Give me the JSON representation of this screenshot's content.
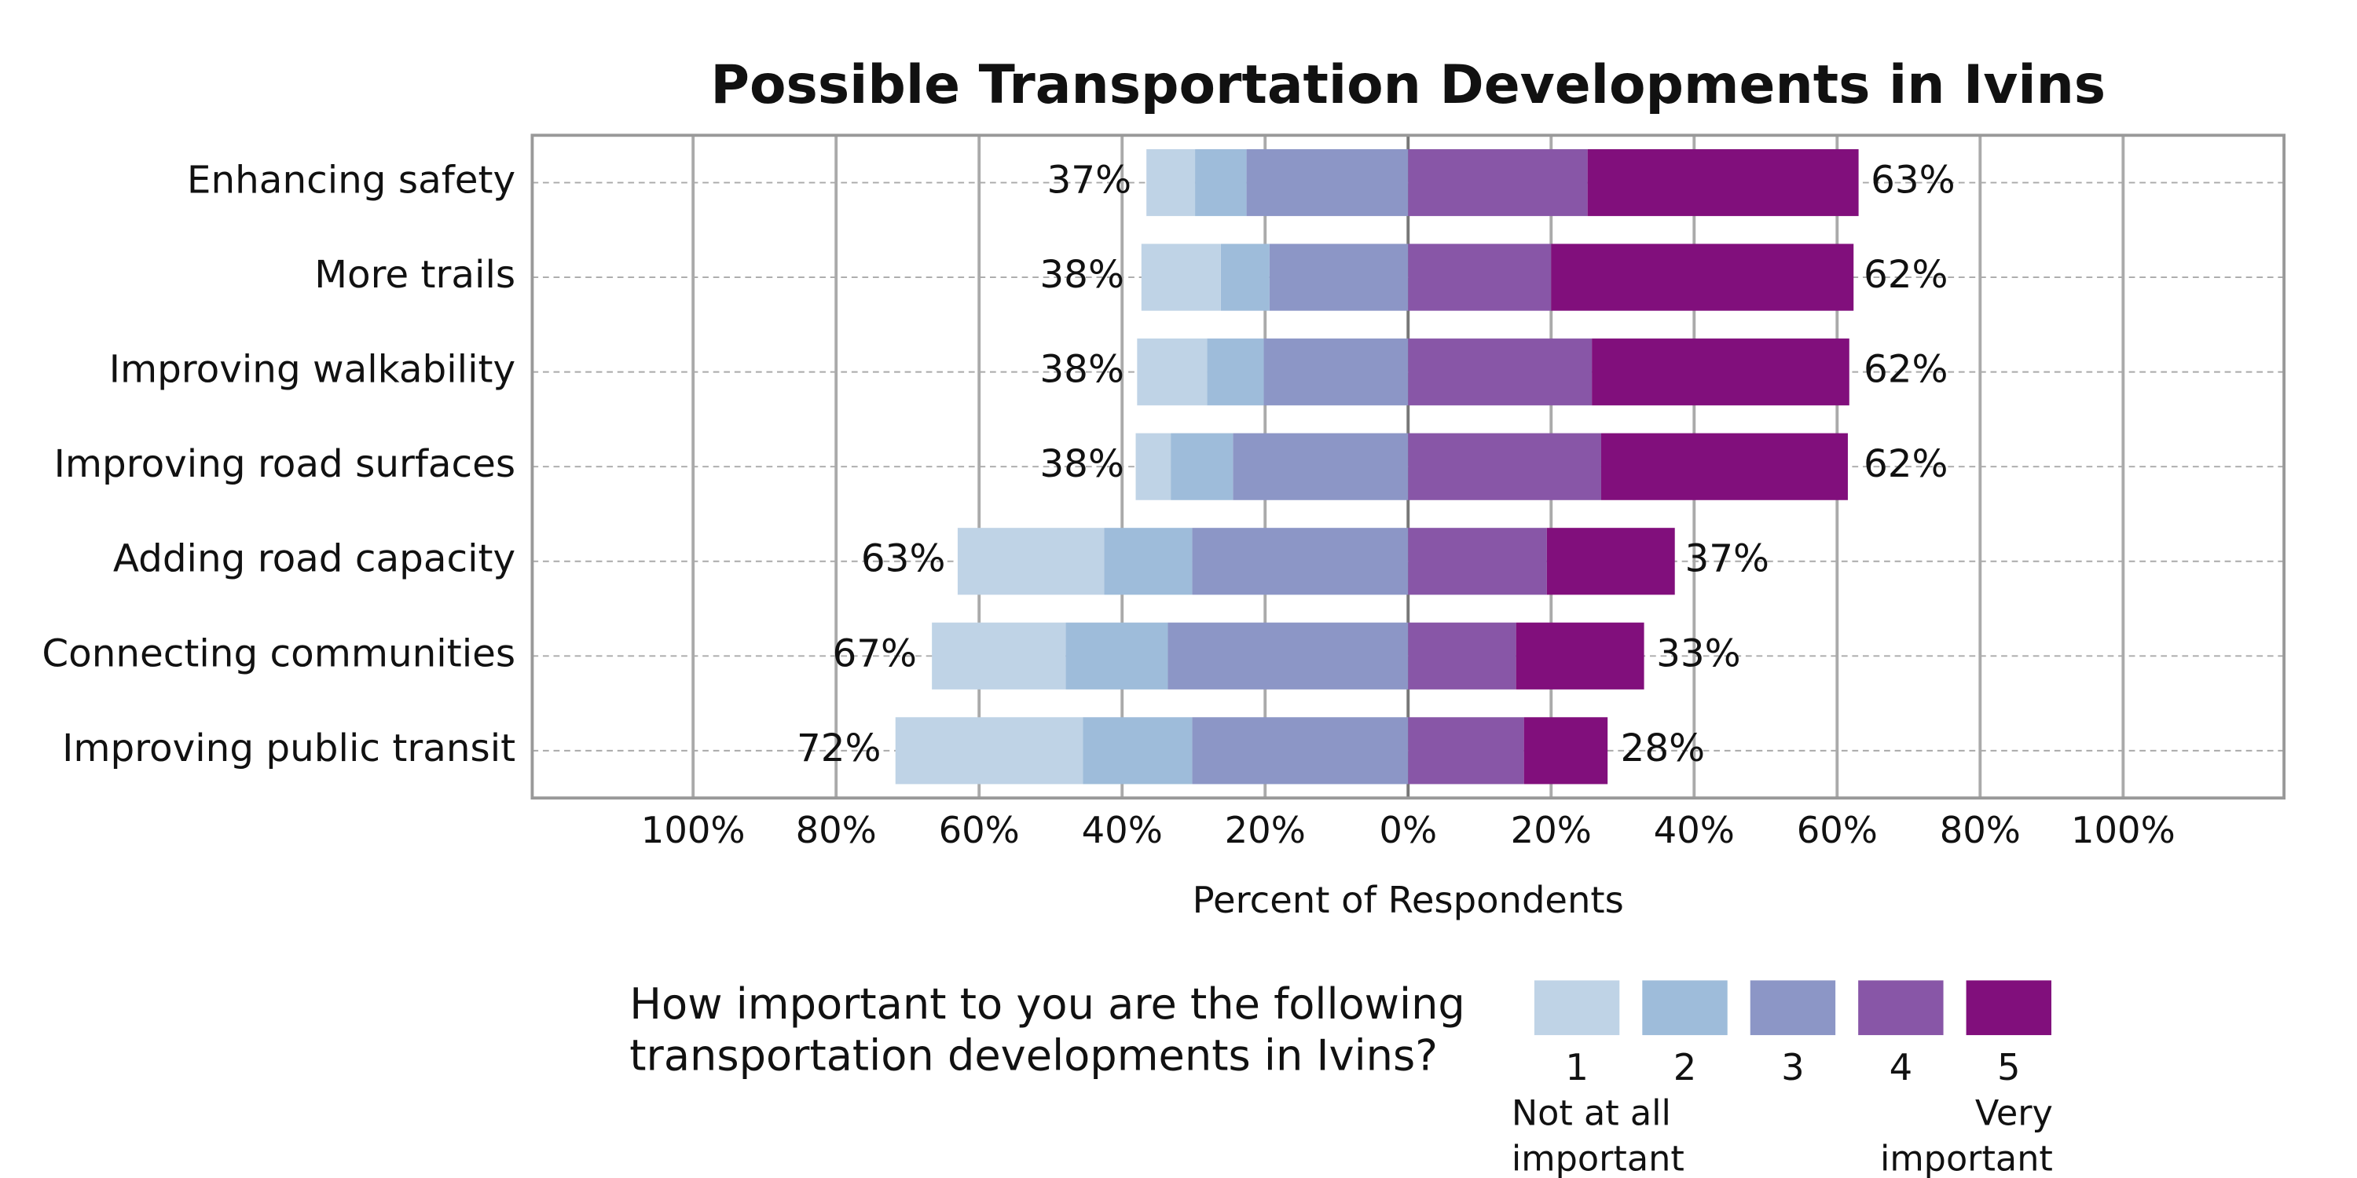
{
  "chart_data": {
    "type": "diverging_bar",
    "title": "Possible Transportation Developments in Ivins",
    "xlabel": "Percent of Respondents",
    "categories": [
      "Enhancing safety",
      "More trails",
      "Improving walkability",
      "Improving road surfaces",
      "Adding road capacity",
      "Connecting communities",
      "Improving public transit"
    ],
    "series": [
      {
        "name": "1",
        "color": "#bfd3e6",
        "side": "left",
        "values": [
          6.8,
          11.1,
          9.8,
          4.9,
          20.5,
          18.7,
          26.2
        ]
      },
      {
        "name": "2",
        "color": "#9ebcda",
        "side": "left",
        "values": [
          7.2,
          6.8,
          7.9,
          8.7,
          12.3,
          14.3,
          15.3
        ]
      },
      {
        "name": "3",
        "color": "#8c96c6",
        "side": "left",
        "values": [
          22.6,
          19.4,
          20.2,
          24.5,
          30.2,
          33.6,
          30.2
        ]
      },
      {
        "name": "4",
        "color": "#8856a7",
        "side": "right",
        "values": [
          25.1,
          20.0,
          25.7,
          27.0,
          19.4,
          15.1,
          16.2
        ]
      },
      {
        "name": "5",
        "color": "#810f7c",
        "side": "right",
        "values": [
          37.9,
          42.3,
          36.0,
          34.5,
          17.9,
          17.9,
          11.7
        ]
      }
    ],
    "left_totals": {
      "values": [
        37,
        38,
        38,
        38,
        63,
        67,
        72
      ],
      "value_labels": [
        "37%",
        "38%",
        "38%",
        "38%",
        "63%",
        "67%",
        "72%"
      ]
    },
    "right_totals": {
      "values": [
        63,
        62,
        62,
        62,
        37,
        33,
        28
      ],
      "value_labels": [
        "63%",
        "62%",
        "62%",
        "62%",
        "37%",
        "33%",
        "28%"
      ]
    },
    "xlim": [
      -122.5,
      122.5
    ],
    "xticks": [
      {
        "value": -100,
        "label": "100%"
      },
      {
        "value": -80,
        "label": "80%"
      },
      {
        "value": -60,
        "label": "60%"
      },
      {
        "value": -40,
        "label": "40%"
      },
      {
        "value": -20,
        "label": "20%"
      },
      {
        "value": 0,
        "label": "0%"
      },
      {
        "value": 20,
        "label": "20%"
      },
      {
        "value": 40,
        "label": "40%"
      },
      {
        "value": 60,
        "label": "60%"
      },
      {
        "value": 80,
        "label": "80%"
      },
      {
        "value": 100,
        "label": "100%"
      }
    ],
    "grid": true,
    "legend_title": "How important to you are the following transportation developments in Ivins?",
    "legend_low_label": "Not at all important",
    "legend_high_label": "Very important"
  }
}
